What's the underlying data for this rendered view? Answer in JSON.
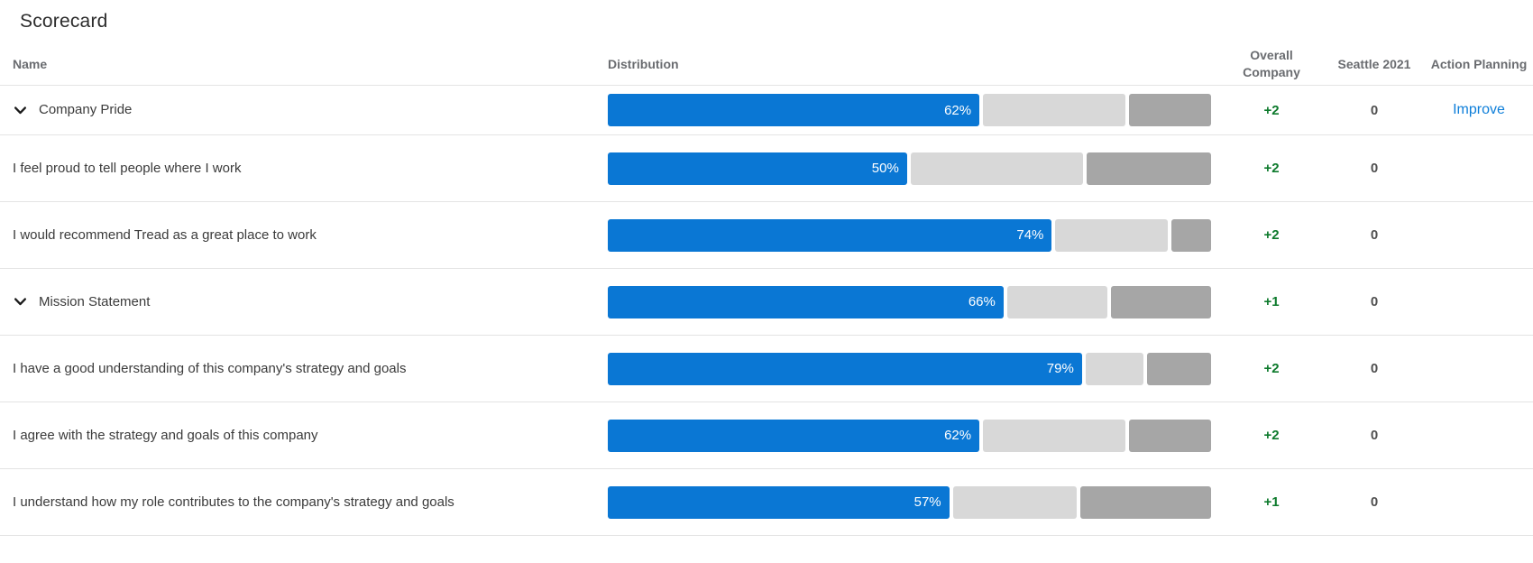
{
  "title": "Scorecard",
  "columns": {
    "name": "Name",
    "distribution": "Distribution",
    "overall": "Overall Company",
    "seattle": "Seattle 2021",
    "action": "Action Planning"
  },
  "colors": {
    "bar_favorable_blue": "#0a77d4",
    "bar_neutral_gray": "#d8d8d8",
    "bar_unfavorable_gray": "#a6a6a6",
    "positive_value_green": "#0d7a2c",
    "action_link_blue": "#0d7ed9"
  },
  "rows": [
    {
      "label": "Company Pride",
      "group": true,
      "favorable": 62,
      "neutral": 24,
      "unfavorable": 14,
      "favorable_label": "62%",
      "overall": "+2",
      "seattle": "0",
      "action": "Improve"
    },
    {
      "label": "I feel proud to tell people where I work",
      "group": false,
      "favorable": 50,
      "neutral": 29,
      "unfavorable": 21,
      "favorable_label": "50%",
      "overall": "+2",
      "seattle": "0",
      "action": ""
    },
    {
      "label": "I would recommend Tread as a great place to work",
      "group": false,
      "favorable": 74,
      "neutral": 19,
      "unfavorable": 7,
      "favorable_label": "74%",
      "overall": "+2",
      "seattle": "0",
      "action": ""
    },
    {
      "label": "Mission Statement",
      "group": true,
      "favorable": 66,
      "neutral": 17,
      "unfavorable": 17,
      "favorable_label": "66%",
      "overall": "+1",
      "seattle": "0",
      "action": ""
    },
    {
      "label": "I have a good understanding of this company's strategy and goals",
      "group": false,
      "favorable": 79,
      "neutral": 10,
      "unfavorable": 11,
      "favorable_label": "79%",
      "overall": "+2",
      "seattle": "0",
      "action": ""
    },
    {
      "label": "I agree with the strategy and goals of this company",
      "group": false,
      "favorable": 62,
      "neutral": 24,
      "unfavorable": 14,
      "favorable_label": "62%",
      "overall": "+2",
      "seattle": "0",
      "action": ""
    },
    {
      "label": "I understand how my role contributes to the company's strategy and goals",
      "group": false,
      "favorable": 57,
      "neutral": 21,
      "unfavorable": 22,
      "favorable_label": "57%",
      "overall": "+1",
      "seattle": "0",
      "action": ""
    }
  ]
}
